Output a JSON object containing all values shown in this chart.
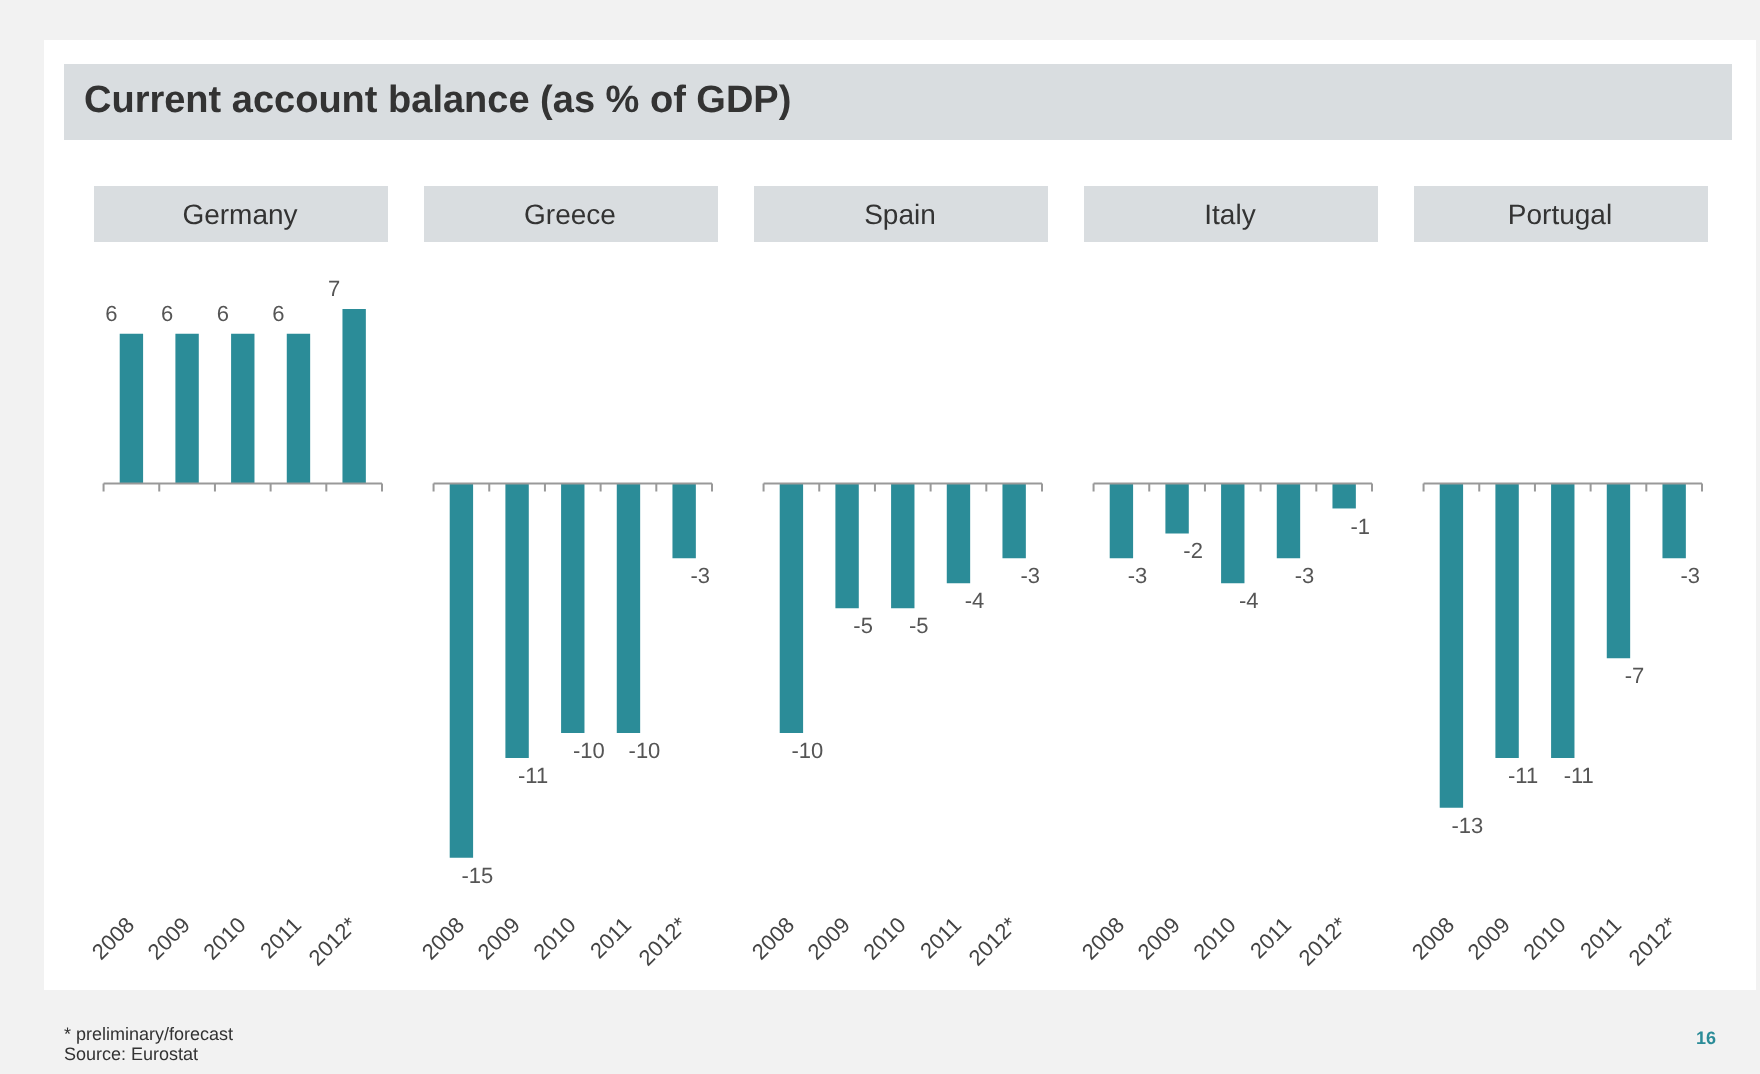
{
  "chart_data": [
    {
      "type": "other",
      "title": "Current account balance (as % of GDP)",
      "annotations": [
        "* preliminary/forecast",
        "Source: Eurostat",
        "16"
      ]
    },
    {
      "type": "bar",
      "title": "Germany",
      "categories": [
        "2008",
        "2009",
        "2010",
        "2011",
        "2012*"
      ],
      "values": [
        6,
        6,
        6,
        6,
        7
      ],
      "color": "#2b8c98",
      "data_labels": true
    },
    {
      "type": "bar",
      "title": "Greece",
      "categories": [
        "2008",
        "2009",
        "2010",
        "2011",
        "2012*"
      ],
      "values": [
        -15,
        -11,
        -10,
        -10,
        -3
      ],
      "color": "#2b8c98",
      "data_labels": true
    },
    {
      "type": "bar",
      "title": "Spain",
      "categories": [
        "2008",
        "2009",
        "2010",
        "2011",
        "2012*"
      ],
      "values": [
        -10,
        -5,
        -5,
        -4,
        -3
      ],
      "color": "#2b8c98",
      "data_labels": true
    },
    {
      "type": "bar",
      "title": "Italy",
      "categories": [
        "2008",
        "2009",
        "2010",
        "2011",
        "2012*"
      ],
      "values": [
        -3,
        -2,
        -4,
        -3,
        -1
      ],
      "color": "#2b8c98",
      "data_labels": true
    },
    {
      "type": "bar",
      "title": "Portugal",
      "categories": [
        "2008",
        "2009",
        "2010",
        "2011",
        "2012*"
      ],
      "values": [
        -13,
        -11,
        -11,
        -7,
        -3
      ],
      "color": "#2b8c98",
      "data_labels": true
    }
  ]
}
